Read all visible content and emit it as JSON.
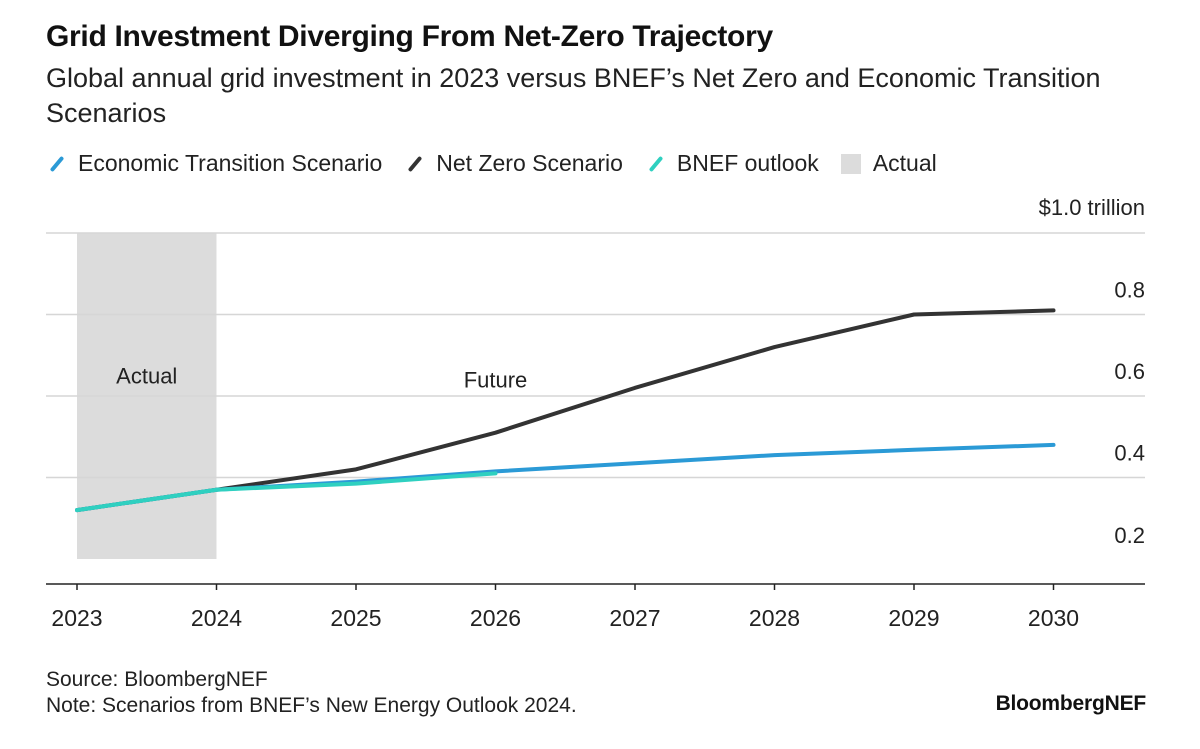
{
  "header": {
    "title": "Grid Investment Diverging From Net-Zero Trajectory",
    "subtitle": "Global annual grid investment in 2023 versus BNEF’s Net Zero and Economic Transition Scenarios"
  },
  "legend": [
    {
      "label": "Economic Transition Scenario",
      "color": "#2b9ad6",
      "kind": "line"
    },
    {
      "label": "Net Zero Scenario",
      "color": "#333333",
      "kind": "line"
    },
    {
      "label": "BNEF outlook",
      "color": "#2fd0c0",
      "kind": "line"
    },
    {
      "label": "Actual",
      "color": "#dcdcdc",
      "kind": "box"
    }
  ],
  "footer": {
    "source": "Source: BloombergNEF",
    "note": "Note: Scenarios from BNEF’s New Energy Outlook 2024.",
    "brand": "BloombergNEF"
  },
  "chart_data": {
    "type": "line",
    "x": [
      2023,
      2024,
      2025,
      2026,
      2027,
      2028,
      2029,
      2030
    ],
    "x_tick_labels": [
      "2023",
      "2024",
      "2025",
      "2026",
      "2027",
      "2028",
      "2029",
      "2030"
    ],
    "y_tick_labels": [
      "0.2",
      "0.4",
      "0.6",
      "0.8",
      "$1.0 trillion"
    ],
    "y_ticks": [
      0.2,
      0.4,
      0.6,
      0.8,
      1.0
    ],
    "ylim": [
      0.2,
      1.0
    ],
    "grid": true,
    "y_axis_side": "right",
    "series": [
      {
        "name": "Net Zero Scenario",
        "color": "#333333",
        "x": [
          2023,
          2024,
          2025,
          2026,
          2027,
          2028,
          2029,
          2030
        ],
        "values": [
          0.32,
          0.37,
          0.42,
          0.51,
          0.62,
          0.72,
          0.8,
          0.81
        ]
      },
      {
        "name": "Economic Transition Scenario",
        "color": "#2b9ad6",
        "x": [
          2023,
          2024,
          2025,
          2026,
          2027,
          2028,
          2029,
          2030
        ],
        "values": [
          0.32,
          0.37,
          0.39,
          0.415,
          0.435,
          0.455,
          0.468,
          0.48
        ]
      },
      {
        "name": "BNEF outlook",
        "color": "#2fd0c0",
        "x": [
          2023,
          2024,
          2025,
          2026
        ],
        "values": [
          0.32,
          0.37,
          0.385,
          0.41
        ]
      }
    ],
    "shaded_region": {
      "label": "Actual",
      "from": 2023,
      "to": 2024,
      "color": "#dcdcdc"
    },
    "annotations": [
      {
        "text": "Actual",
        "x": 2023.5,
        "y": 0.65
      },
      {
        "text": "Future",
        "x": 2026,
        "y": 0.64
      }
    ]
  }
}
